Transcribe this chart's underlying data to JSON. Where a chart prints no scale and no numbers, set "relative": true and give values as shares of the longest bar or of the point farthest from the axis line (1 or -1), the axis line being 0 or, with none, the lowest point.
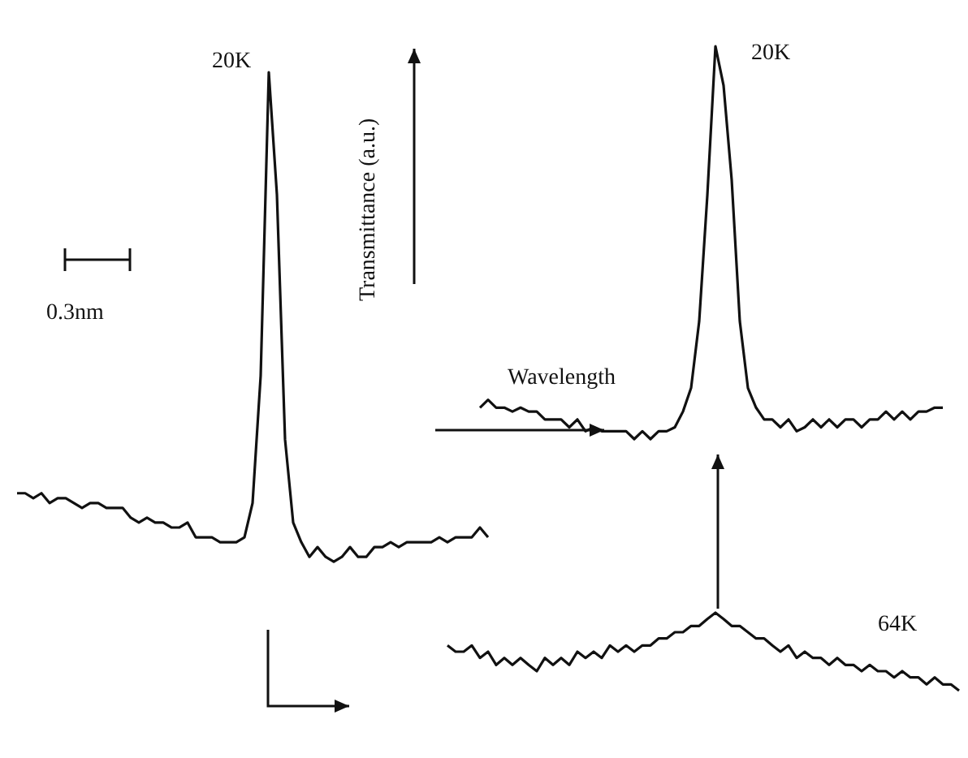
{
  "chart_data": [
    {
      "type": "line",
      "relative": true,
      "categories": [
        null,
        null,
        null,
        null,
        null,
        null,
        null,
        null,
        null,
        null,
        null,
        null,
        null,
        null,
        null,
        null,
        null,
        null,
        null,
        null,
        null,
        null,
        null,
        null,
        null,
        null,
        null,
        null,
        null,
        null,
        null,
        null,
        null,
        null,
        null,
        null,
        null,
        null,
        null,
        null,
        null,
        null,
        null,
        null,
        null,
        null,
        null,
        null,
        null,
        null,
        null,
        null,
        null,
        null,
        null,
        null,
        null,
        null,
        null
      ],
      "series": [
        {
          "color": "#111111",
          "values": [
            0.14,
            0.14,
            0.13,
            0.14,
            0.12,
            0.13,
            0.13,
            0.12,
            0.11,
            0.12,
            0.12,
            0.11,
            0.11,
            0.11,
            0.09,
            0.08,
            0.09,
            0.08,
            0.08,
            0.07,
            0.07,
            0.08,
            0.05,
            0.05,
            0.05,
            0.04,
            0.04,
            0.04,
            0.05,
            0.12,
            0.38,
            1.0,
            0.75,
            0.25,
            0.08,
            0.04,
            0.01,
            0.03,
            0.01,
            0.0,
            0.01,
            0.03,
            0.01,
            0.01,
            0.03,
            0.03,
            0.04,
            0.03,
            0.04,
            0.04,
            0.04,
            0.04,
            0.05,
            0.04,
            0.05,
            0.05,
            0.05,
            0.07,
            0.05
          ]
        }
      ],
      "annotations": [
        "20K"
      ]
    },
    {
      "type": "line",
      "relative": true,
      "categories": [
        null,
        null,
        null,
        null,
        null,
        null,
        null,
        null,
        null,
        null,
        null,
        null,
        null,
        null,
        null,
        null,
        null,
        null,
        null,
        null,
        null,
        null,
        null,
        null,
        null,
        null,
        null,
        null,
        null,
        null,
        null,
        null,
        null,
        null,
        null,
        null,
        null,
        null,
        null,
        null,
        null,
        null,
        null,
        null,
        null,
        null,
        null,
        null,
        null,
        null,
        null,
        null,
        null,
        null,
        null,
        null,
        null,
        null
      ],
      "series": [
        {
          "color": "#111111",
          "values": [
            0.08,
            0.1,
            0.08,
            0.08,
            0.07,
            0.08,
            0.07,
            0.07,
            0.05,
            0.05,
            0.05,
            0.03,
            0.05,
            0.02,
            0.03,
            0.02,
            0.02,
            0.02,
            0.02,
            0.0,
            0.02,
            0.0,
            0.02,
            0.02,
            0.03,
            0.07,
            0.13,
            0.3,
            0.62,
            1.0,
            0.9,
            0.66,
            0.3,
            0.13,
            0.08,
            0.05,
            0.05,
            0.03,
            0.05,
            0.02,
            0.03,
            0.05,
            0.03,
            0.05,
            0.03,
            0.05,
            0.05,
            0.03,
            0.05,
            0.05,
            0.07,
            0.05,
            0.07,
            0.05,
            0.07,
            0.07,
            0.08,
            0.08
          ]
        }
      ],
      "annotations": [
        "20K"
      ]
    },
    {
      "type": "line",
      "relative": true,
      "categories": [
        null,
        null,
        null,
        null,
        null,
        null,
        null,
        null,
        null,
        null,
        null,
        null,
        null,
        null,
        null,
        null,
        null,
        null,
        null,
        null,
        null,
        null,
        null,
        null,
        null,
        null,
        null,
        null,
        null,
        null,
        null,
        null,
        null,
        null,
        null,
        null,
        null,
        null,
        null,
        null,
        null,
        null,
        null,
        null,
        null,
        null,
        null,
        null,
        null,
        null,
        null,
        null,
        null,
        null,
        null,
        null,
        null,
        null,
        null,
        null,
        null,
        null,
        null,
        null
      ],
      "series": [
        {
          "color": "#111111",
          "values": [
            0.58,
            0.5,
            0.5,
            0.58,
            0.42,
            0.5,
            0.33,
            0.42,
            0.33,
            0.42,
            0.33,
            0.25,
            0.42,
            0.33,
            0.42,
            0.33,
            0.5,
            0.42,
            0.5,
            0.42,
            0.58,
            0.5,
            0.58,
            0.5,
            0.58,
            0.58,
            0.67,
            0.67,
            0.75,
            0.75,
            0.83,
            0.83,
            0.92,
            1.0,
            0.92,
            0.83,
            0.83,
            0.75,
            0.67,
            0.67,
            0.58,
            0.5,
            0.58,
            0.42,
            0.5,
            0.42,
            0.42,
            0.33,
            0.42,
            0.33,
            0.33,
            0.25,
            0.33,
            0.25,
            0.25,
            0.17,
            0.25,
            0.17,
            0.17,
            0.08,
            0.17,
            0.08,
            0.08,
            0.0
          ]
        }
      ],
      "annotations": [
        "64K"
      ]
    },
    {
      "type": "other",
      "annotations": [
        "Transmittance (a.u.)",
        "Wavelength",
        "0.3nm"
      ]
    }
  ]
}
